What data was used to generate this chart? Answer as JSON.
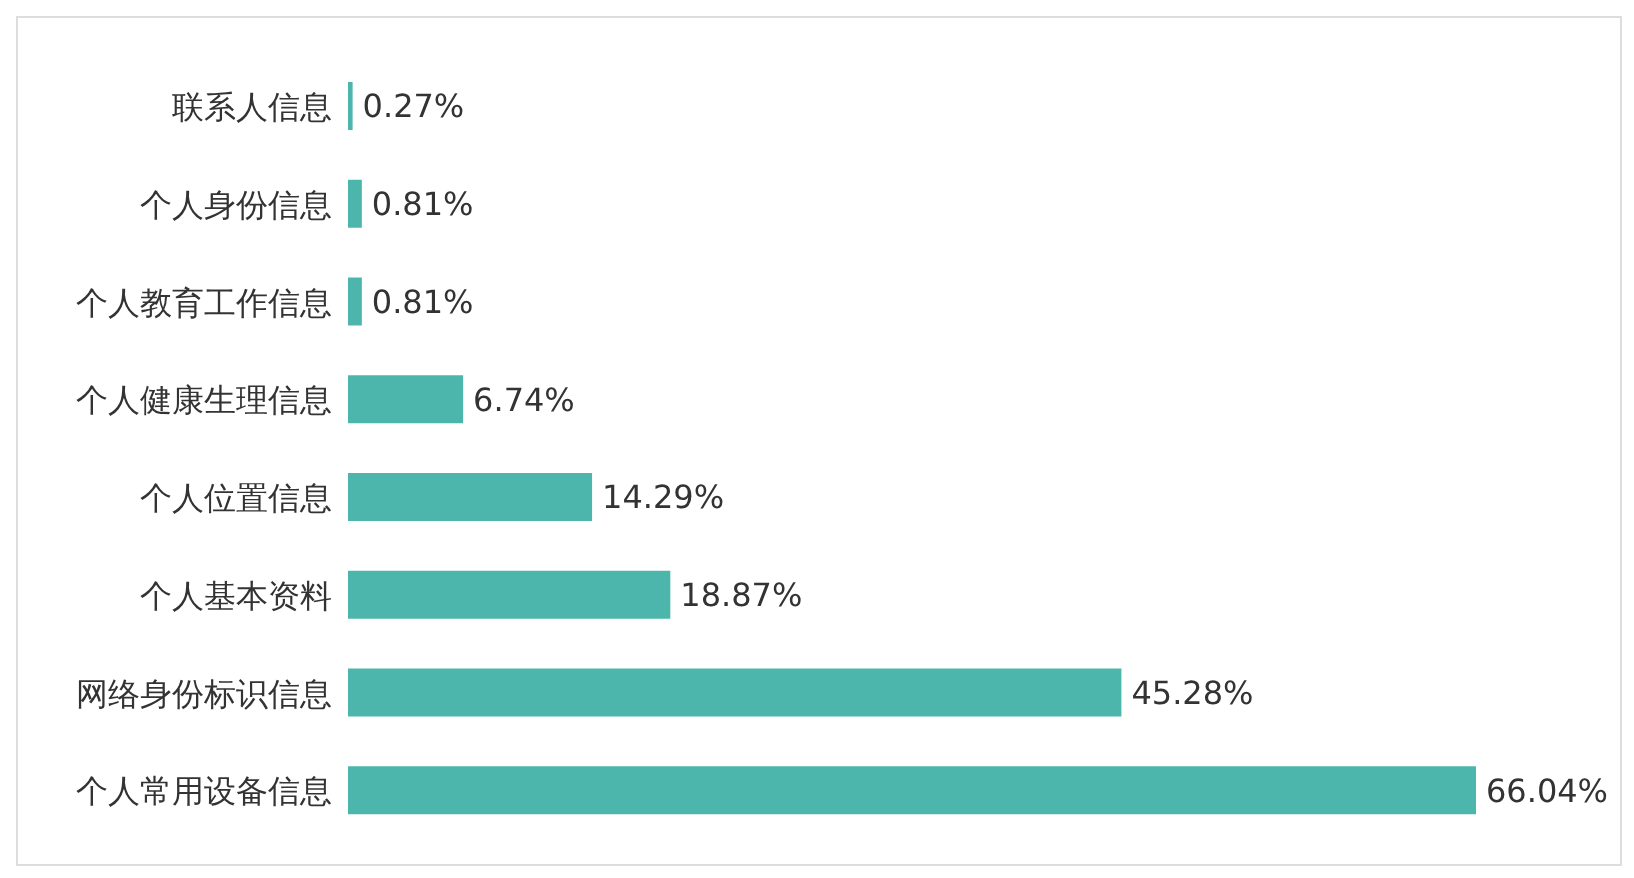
{
  "chart_data": {
    "type": "bar",
    "orientation": "horizontal",
    "categories": [
      "联系人信息",
      "个人身份信息",
      "个人教育工作信息",
      "个人健康生理信息",
      "个人位置信息",
      "个人基本资料",
      "网络身份标识信息",
      "个人常用设备信息"
    ],
    "values": [
      0.27,
      0.81,
      0.81,
      6.74,
      14.29,
      18.87,
      45.28,
      66.04
    ],
    "value_labels": [
      "0.27%",
      "0.81%",
      "0.81%",
      "6.74%",
      "14.29%",
      "18.87%",
      "45.28%",
      "66.04%"
    ],
    "color": "#4db6ac",
    "legend": false,
    "grid": false
  }
}
